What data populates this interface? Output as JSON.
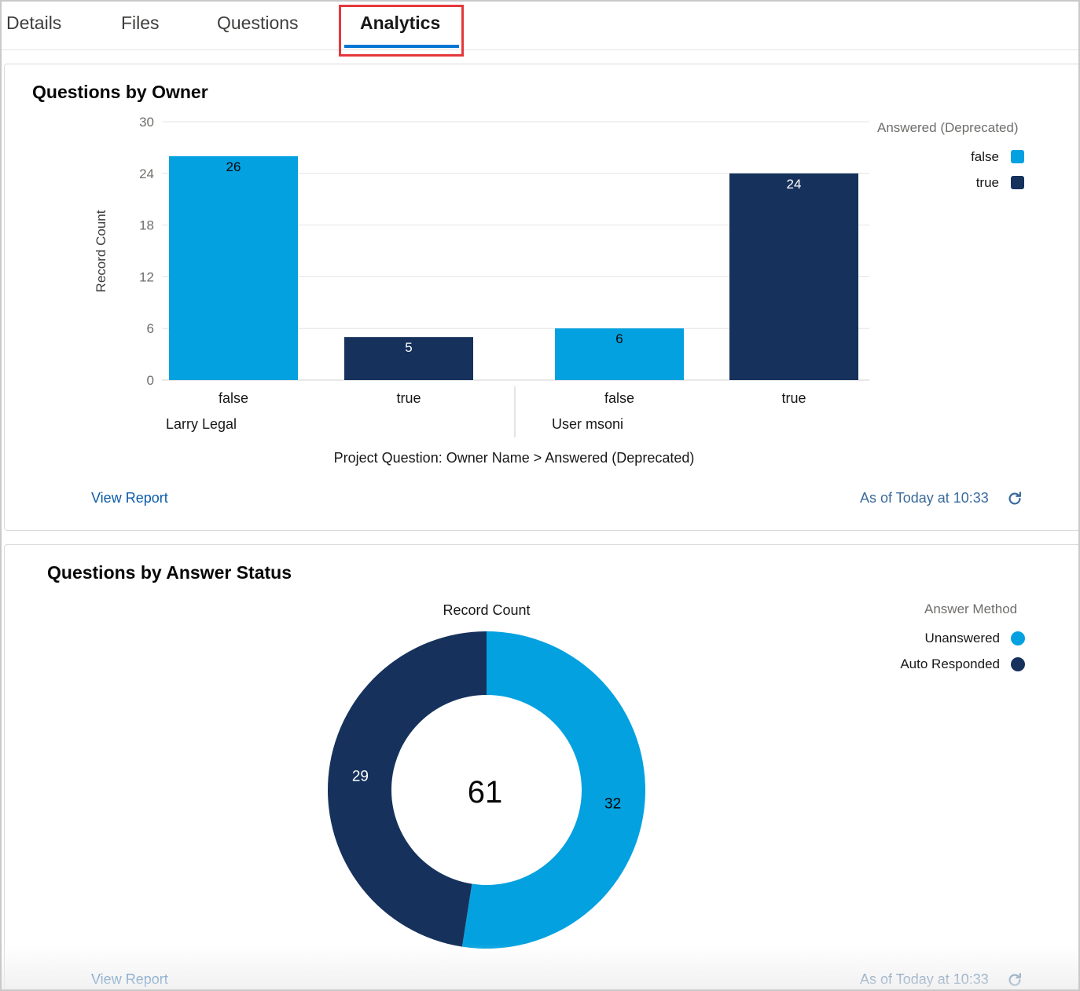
{
  "tabs": [
    {
      "label": "Details"
    },
    {
      "label": "Files"
    },
    {
      "label": "Questions"
    },
    {
      "label": "Analytics",
      "active": true
    }
  ],
  "colors": {
    "false_series": "#04a1e0",
    "true_series": "#16325c",
    "link": "#0b5cab"
  },
  "card1": {
    "title": "Questions by Owner",
    "view_report": "View Report",
    "as_of": "As of Today at 10:33",
    "legend_title": "Answered (Deprecated)",
    "legend": [
      {
        "label": "false",
        "color": "#04a1e0"
      },
      {
        "label": "true",
        "color": "#16325c"
      }
    ]
  },
  "card2": {
    "title": "Questions by Answer Status",
    "view_report": "View Report",
    "as_of": "As of Today at 10:33",
    "legend_title": "Answer Method",
    "legend": [
      {
        "label": "Unanswered",
        "color": "#04a1e0"
      },
      {
        "label": "Auto Responded",
        "color": "#16325c"
      }
    ]
  },
  "chart_data": [
    {
      "type": "bar",
      "title": "Questions by Owner",
      "ylabel": "Record Count",
      "xlabel": "Project Question: Owner Name > Answered (Deprecated)",
      "ylim": [
        0,
        30
      ],
      "yticks": [
        0,
        6,
        12,
        18,
        24,
        30
      ],
      "grid": true,
      "legend_position": "top-right",
      "groups": [
        {
          "name": "Larry Legal",
          "bars": [
            {
              "label": "false",
              "value": 26,
              "color": "#04a1e0"
            },
            {
              "label": "true",
              "value": 5,
              "color": "#16325c"
            }
          ]
        },
        {
          "name": "User msoni",
          "bars": [
            {
              "label": "false",
              "value": 6,
              "color": "#04a1e0"
            },
            {
              "label": "true",
              "value": 24,
              "color": "#16325c"
            }
          ]
        }
      ]
    },
    {
      "type": "pie",
      "variant": "donut",
      "title": "Record Count",
      "total": "61",
      "legend_position": "top-right",
      "slices": [
        {
          "label": "Unanswered",
          "value": 32,
          "color": "#04a1e0"
        },
        {
          "label": "Auto Responded",
          "value": 29,
          "color": "#16325c"
        }
      ]
    }
  ]
}
